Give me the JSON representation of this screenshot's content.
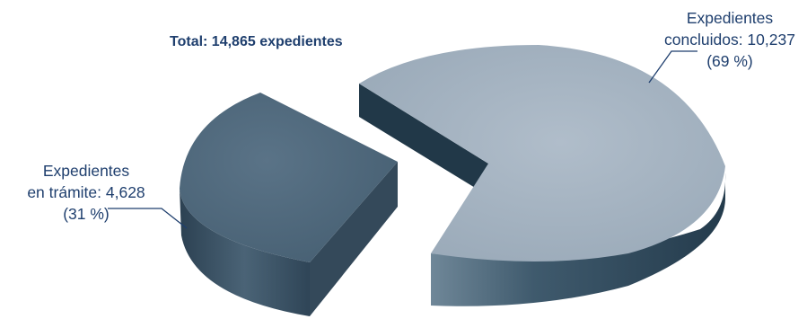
{
  "chart_data": {
    "type": "pie",
    "title": "Total: 14,865 expedientes",
    "total": 14865,
    "slices": [
      {
        "name": "Expedientes concluidos",
        "value": 10237,
        "percent": 69,
        "label_lines": [
          "Expedientes",
          "concluidos: 10,237",
          "(69 %)"
        ],
        "top_color": "#a5b3c1",
        "side_color": "#2d4a5e"
      },
      {
        "name": "Expedientes en trámite",
        "value": 4628,
        "percent": 31,
        "label_lines": [
          "Expedientes",
          "en trámite: 4,628",
          "(31 %)"
        ],
        "top_color": "#506a7d",
        "side_color": "#34495a"
      }
    ],
    "style": "3d-exploded",
    "legend": "none"
  },
  "colors": {
    "text": "#1f3f6e",
    "leader": "#1f3f6e"
  }
}
